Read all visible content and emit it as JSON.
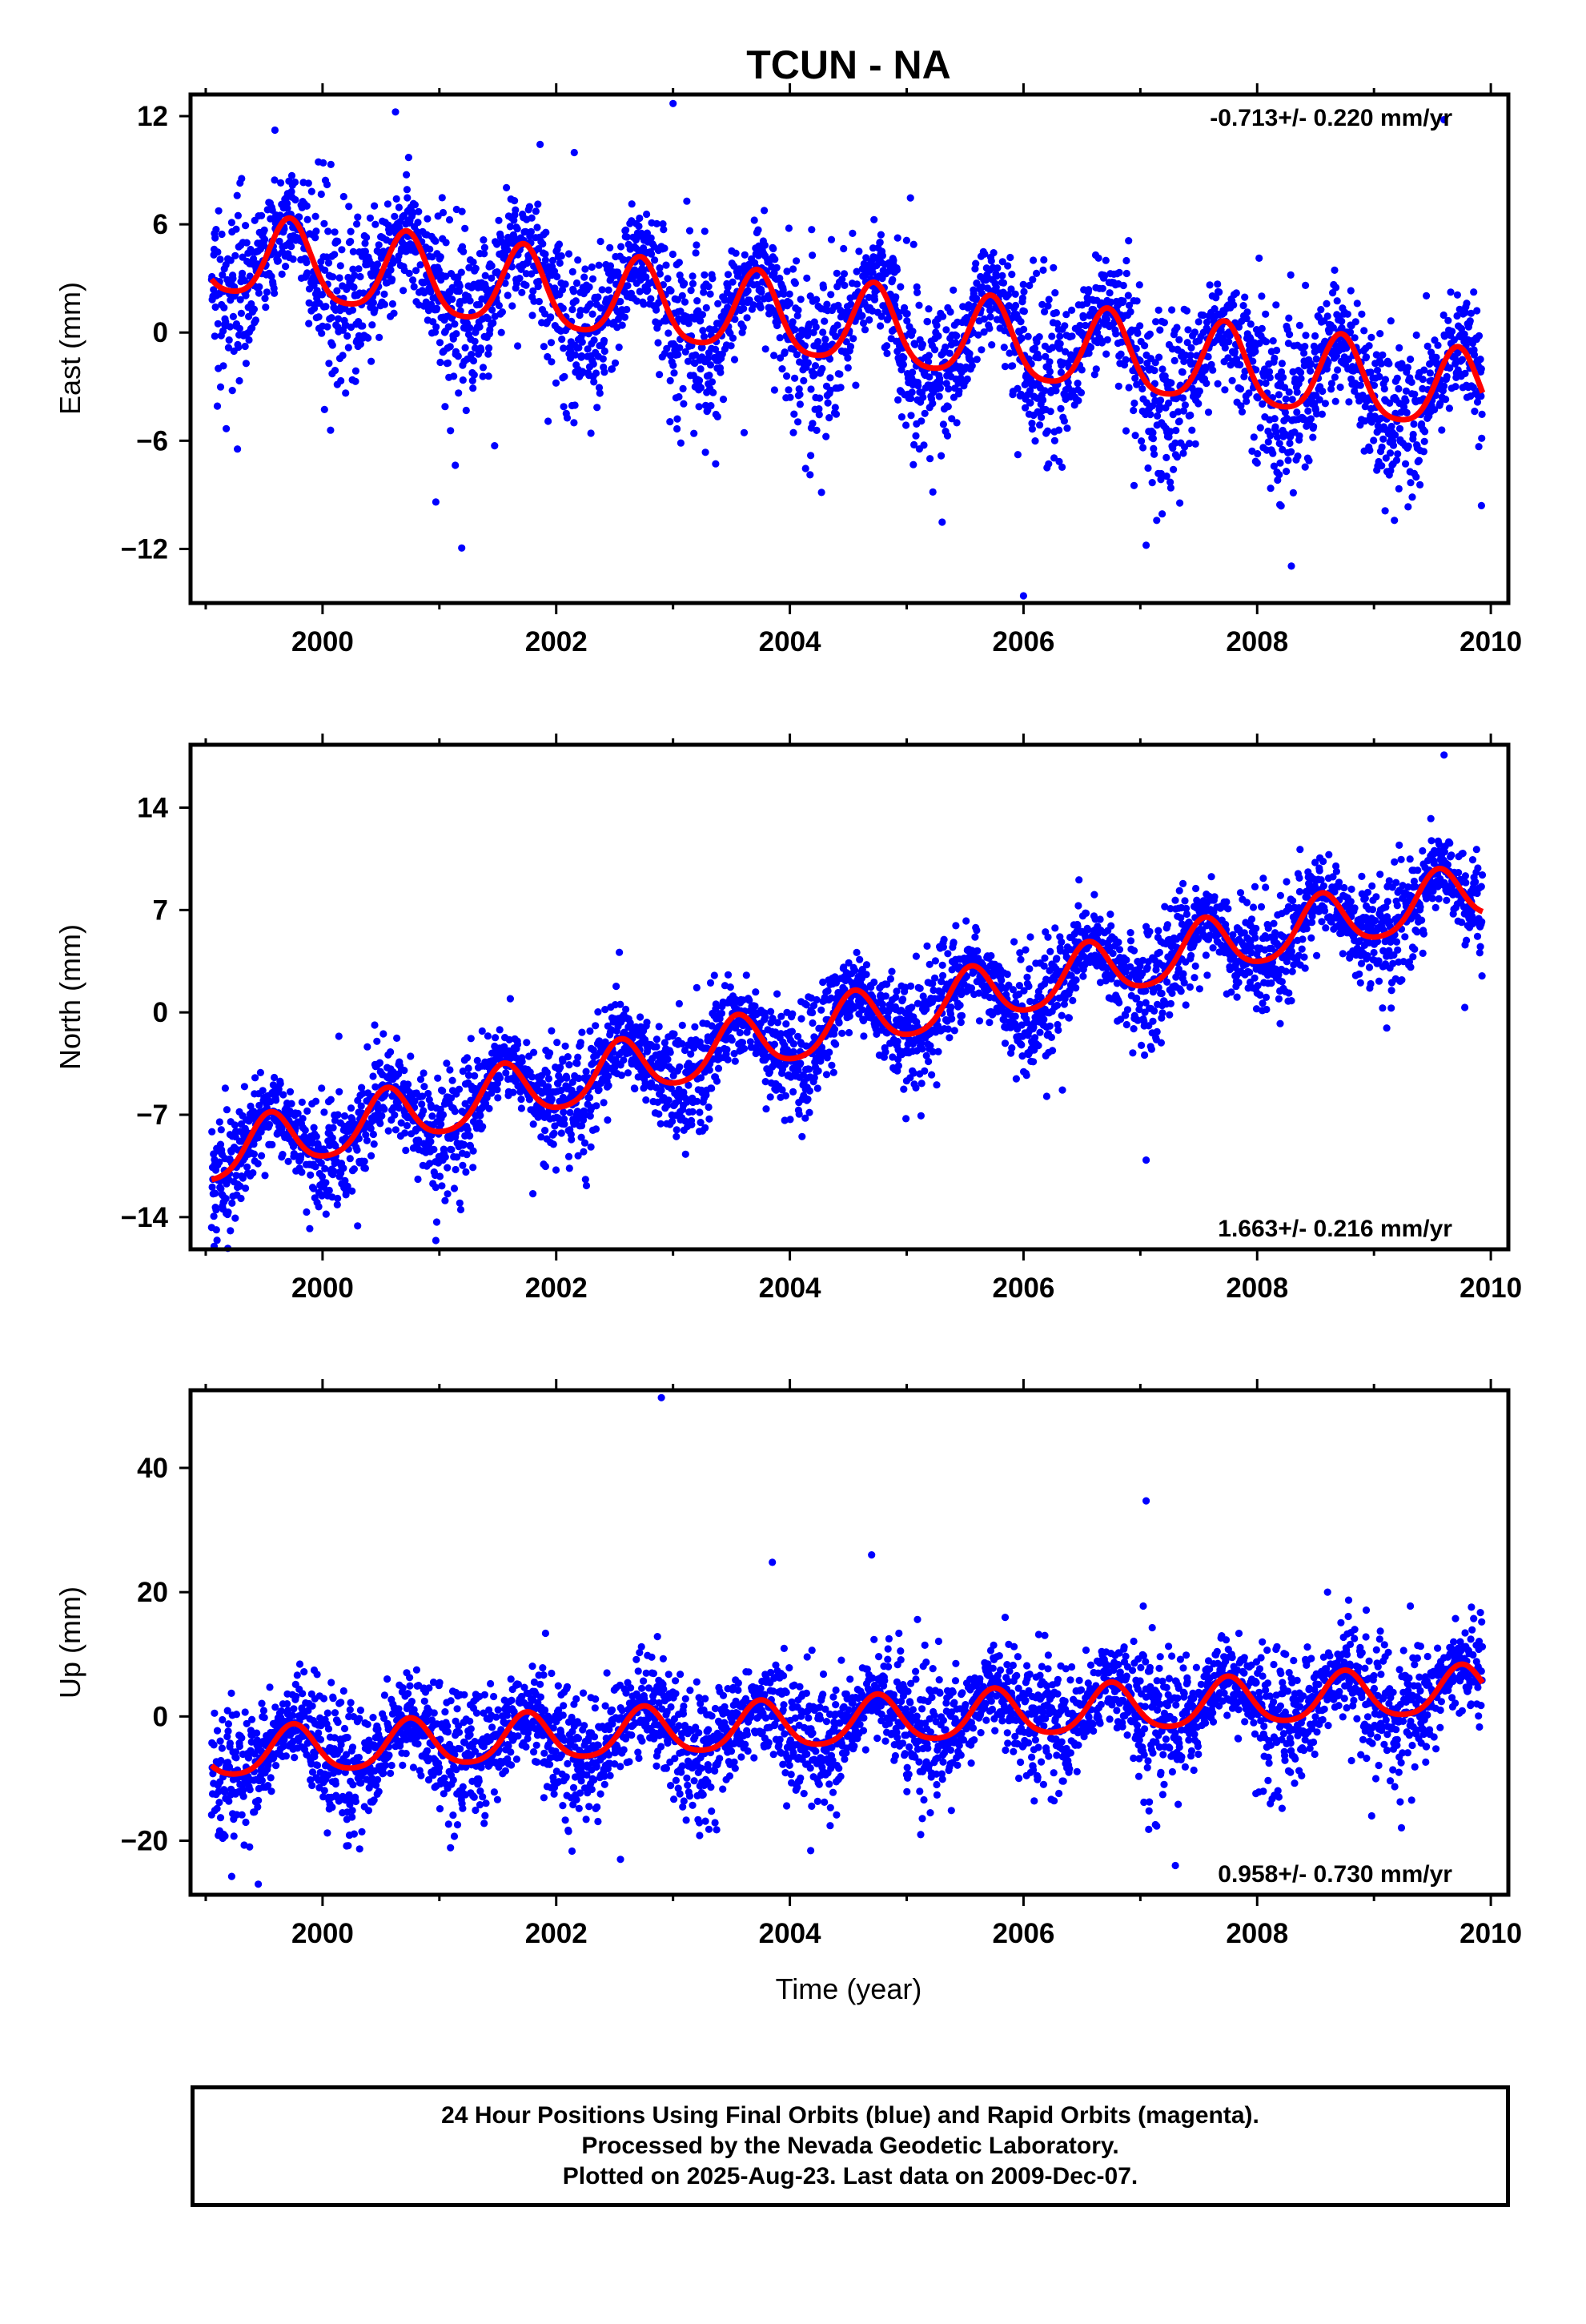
{
  "title": "TCUN - NA",
  "colors": {
    "points": "#0000ff",
    "fit": "#ff0000",
    "frame": "#000000"
  },
  "chart_data": [
    {
      "type": "scatter",
      "component": "east",
      "ylabel": "East (mm)",
      "xlim": [
        1998.87,
        2010.15
      ],
      "ylim": [
        -15.0,
        13.2
      ],
      "yticks": [
        12,
        6,
        0,
        -6,
        -12
      ],
      "yticklabels": [
        "12",
        "6",
        "0",
        "−6",
        "−12"
      ],
      "xticks": [
        2000,
        2002,
        2004,
        2006,
        2008,
        2010
      ],
      "xticklabels": [
        "2000",
        "2002",
        "2004",
        "2006",
        "2008",
        "2010"
      ],
      "rate_text": "-0.713+/- 0.220 mm/yr",
      "rate_position": "top-right",
      "fit": {
        "slope": -0.713,
        "intercept_at_2004": 0.7,
        "annual_amp": 2.2,
        "annual_phase_year": 0.72,
        "semiannual_amp": 0.4
      },
      "noise": 2.0,
      "outliers": [
        [
          2003.0,
          12.7
        ],
        [
          2009.6,
          11.8
        ],
        [
          2000.97,
          -9.4
        ],
        [
          2007.05,
          -11.8
        ],
        [
          2006.0,
          -14.6
        ],
        [
          2009.92,
          -9.6
        ]
      ]
    },
    {
      "type": "scatter",
      "component": "north",
      "ylabel": "North (mm)",
      "xlim": [
        1998.87,
        2010.15
      ],
      "ylim": [
        -16.2,
        18.3
      ],
      "yticks": [
        14,
        7,
        0,
        -7,
        -14
      ],
      "yticklabels": [
        "14",
        "7",
        "0",
        "−7",
        "−14"
      ],
      "xticks": [
        2000,
        2002,
        2004,
        2006,
        2008,
        2010
      ],
      "xticklabels": [
        "2000",
        "2002",
        "2004",
        "2006",
        "2008",
        "2010"
      ],
      "rate_text": "1.663+/- 0.216 mm/yr",
      "rate_position": "bottom-right",
      "fit": {
        "slope": 1.663,
        "intercept_at_2004": -1.6,
        "annual_amp": 1.9,
        "annual_phase_year": 0.55,
        "semiannual_amp": 0.3
      },
      "noise": 1.7,
      "outliers": [
        [
          2009.6,
          17.6
        ],
        [
          2000.97,
          -15.6
        ],
        [
          2007.05,
          -10.1
        ],
        [
          2000.3,
          -14.6
        ],
        [
          2001.8,
          -12.4
        ]
      ]
    },
    {
      "type": "scatter",
      "component": "up",
      "ylabel": "Up (mm)",
      "xlabel": "Time (year)",
      "xlim": [
        1998.87,
        2010.15
      ],
      "ylim": [
        -28.7,
        52.5
      ],
      "yticks": [
        40,
        20,
        0,
        -20
      ],
      "yticklabels": [
        "40",
        "20",
        "0",
        "−20"
      ],
      "xticks": [
        2000,
        2002,
        2004,
        2006,
        2008,
        2010
      ],
      "xticklabels": [
        "2000",
        "2002",
        "2004",
        "2006",
        "2008",
        "2010"
      ],
      "rate_text": "0.958+/- 0.730 mm/yr",
      "rate_position": "bottom-right",
      "fit": {
        "slope": 0.958,
        "intercept_at_2004": -1.5,
        "annual_amp": 3.8,
        "annual_phase_year": 0.75,
        "semiannual_amp": 0.6
      },
      "noise": 4.5,
      "outliers": [
        [
          2002.9,
          51.3
        ],
        [
          2007.05,
          34.7
        ],
        [
          2004.7,
          26.0
        ],
        [
          2002.55,
          -23.0
        ],
        [
          1999.45,
          -27.0
        ],
        [
          2007.3,
          -24.0
        ],
        [
          2003.85,
          24.8
        ]
      ]
    }
  ],
  "footer": {
    "line1": "24 Hour Positions Using Final Orbits (blue) and Rapid Orbits (magenta).",
    "line2": "Processed by the Nevada Geodetic Laboratory.",
    "line3": "Plotted on 2025-Aug-23. Last data on 2009-Dec-07."
  }
}
